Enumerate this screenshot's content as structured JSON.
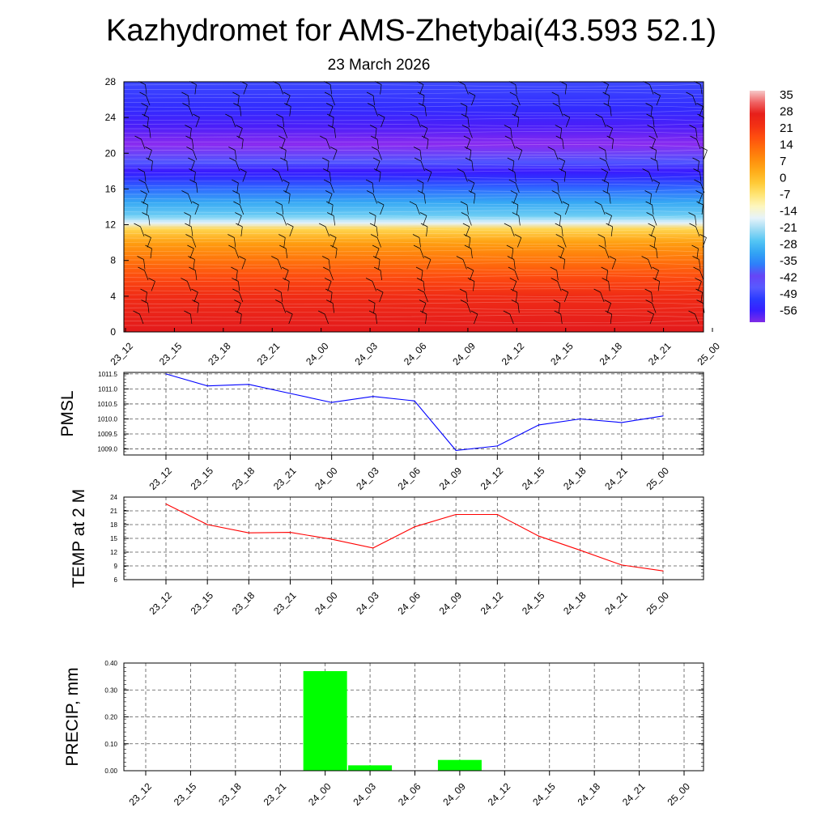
{
  "header": {
    "title": "Kazhydromet for AMS-Zhetybai(43.593 52.1)",
    "date": "23 March 2026"
  },
  "colors": {
    "pmsl_line": "#0000ff",
    "temp_line": "#ff0000",
    "precip_bar": "#00ff00",
    "grid": "#555555"
  },
  "chart_data": [
    {
      "type": "heatmap",
      "name": "upper-air-temperature-wind",
      "categories": [
        "23_12",
        "23_15",
        "23_18",
        "23_21",
        "24_00",
        "24_03",
        "24_06",
        "24_09",
        "24_12",
        "24_15",
        "24_18",
        "24_21",
        "25_00"
      ],
      "ylim": [
        0,
        28
      ],
      "yticks": [
        "0",
        "4",
        "8",
        "12",
        "16",
        "20",
        "24",
        "28"
      ],
      "zrange": [
        -60,
        38
      ],
      "z_profile": [
        {
          "y": 0,
          "z": 30
        },
        {
          "y": 2,
          "z": 27
        },
        {
          "y": 4,
          "z": 24
        },
        {
          "y": 6,
          "z": 19
        },
        {
          "y": 8,
          "z": 13
        },
        {
          "y": 10,
          "z": 6
        },
        {
          "y": 11.5,
          "z": -3
        },
        {
          "y": 12.2,
          "z": -16
        },
        {
          "y": 13,
          "z": -24
        },
        {
          "y": 14.5,
          "z": -30
        },
        {
          "y": 16,
          "z": -38
        },
        {
          "y": 17.2,
          "z": -52
        },
        {
          "y": 18,
          "z": -56
        },
        {
          "y": 19,
          "z": -46
        },
        {
          "y": 21,
          "z": -42
        },
        {
          "y": 23,
          "z": -57
        },
        {
          "y": 25,
          "z": -53
        },
        {
          "y": 28,
          "z": -48
        }
      ],
      "colorbar": {
        "labels": [
          "35",
          "28",
          "21",
          "14",
          "7",
          "0",
          "-7",
          "-14",
          "-21",
          "-28",
          "-35",
          "-42",
          "-49",
          "-56"
        ]
      }
    },
    {
      "type": "line",
      "name": "pmsl",
      "ylabel": "PMSL",
      "categories": [
        "23_12",
        "23_15",
        "23_18",
        "23_21",
        "24_00",
        "24_03",
        "24_06",
        "24_09",
        "24_12",
        "24_15",
        "24_18",
        "24_21",
        "25_00"
      ],
      "values": [
        1011.5,
        1011.1,
        1011.15,
        1010.85,
        1010.55,
        1010.75,
        1010.6,
        1008.95,
        1009.1,
        1009.8,
        1010.0,
        1009.88,
        1010.1
      ],
      "ylim": [
        1008.8,
        1011.55
      ],
      "yticks": [
        "1009.0",
        "1009.5",
        "1010.0",
        "1010.5",
        "1011.0",
        "1011.5"
      ]
    },
    {
      "type": "line",
      "name": "temp-2m",
      "ylabel": "TEMP at 2 M",
      "categories": [
        "23_12",
        "23_15",
        "23_18",
        "23_21",
        "24_00",
        "24_03",
        "24_06",
        "24_09",
        "24_12",
        "24_15",
        "24_18",
        "24_21",
        "25_00"
      ],
      "values": [
        22.5,
        18.0,
        16.2,
        16.3,
        14.8,
        12.9,
        17.5,
        20.2,
        20.2,
        15.5,
        12.4,
        9.2,
        7.9
      ],
      "ylim": [
        6,
        24
      ],
      "yticks": [
        "6",
        "9",
        "12",
        "15",
        "18",
        "21",
        "24"
      ]
    },
    {
      "type": "bar",
      "name": "precip",
      "ylabel": "PRECIP, mm",
      "categories": [
        "23_12",
        "23_15",
        "23_18",
        "23_21",
        "24_00",
        "24_03",
        "24_06",
        "24_09",
        "24_12",
        "24_15",
        "24_18",
        "24_21",
        "25_00"
      ],
      "values": [
        0,
        0,
        0,
        0,
        0.37,
        0.02,
        0,
        0.04,
        0,
        0,
        0,
        0,
        0
      ],
      "ylim": [
        0,
        0.4
      ],
      "yticks": [
        "0.00",
        "0.10",
        "0.20",
        "0.30",
        "0.40"
      ]
    }
  ]
}
